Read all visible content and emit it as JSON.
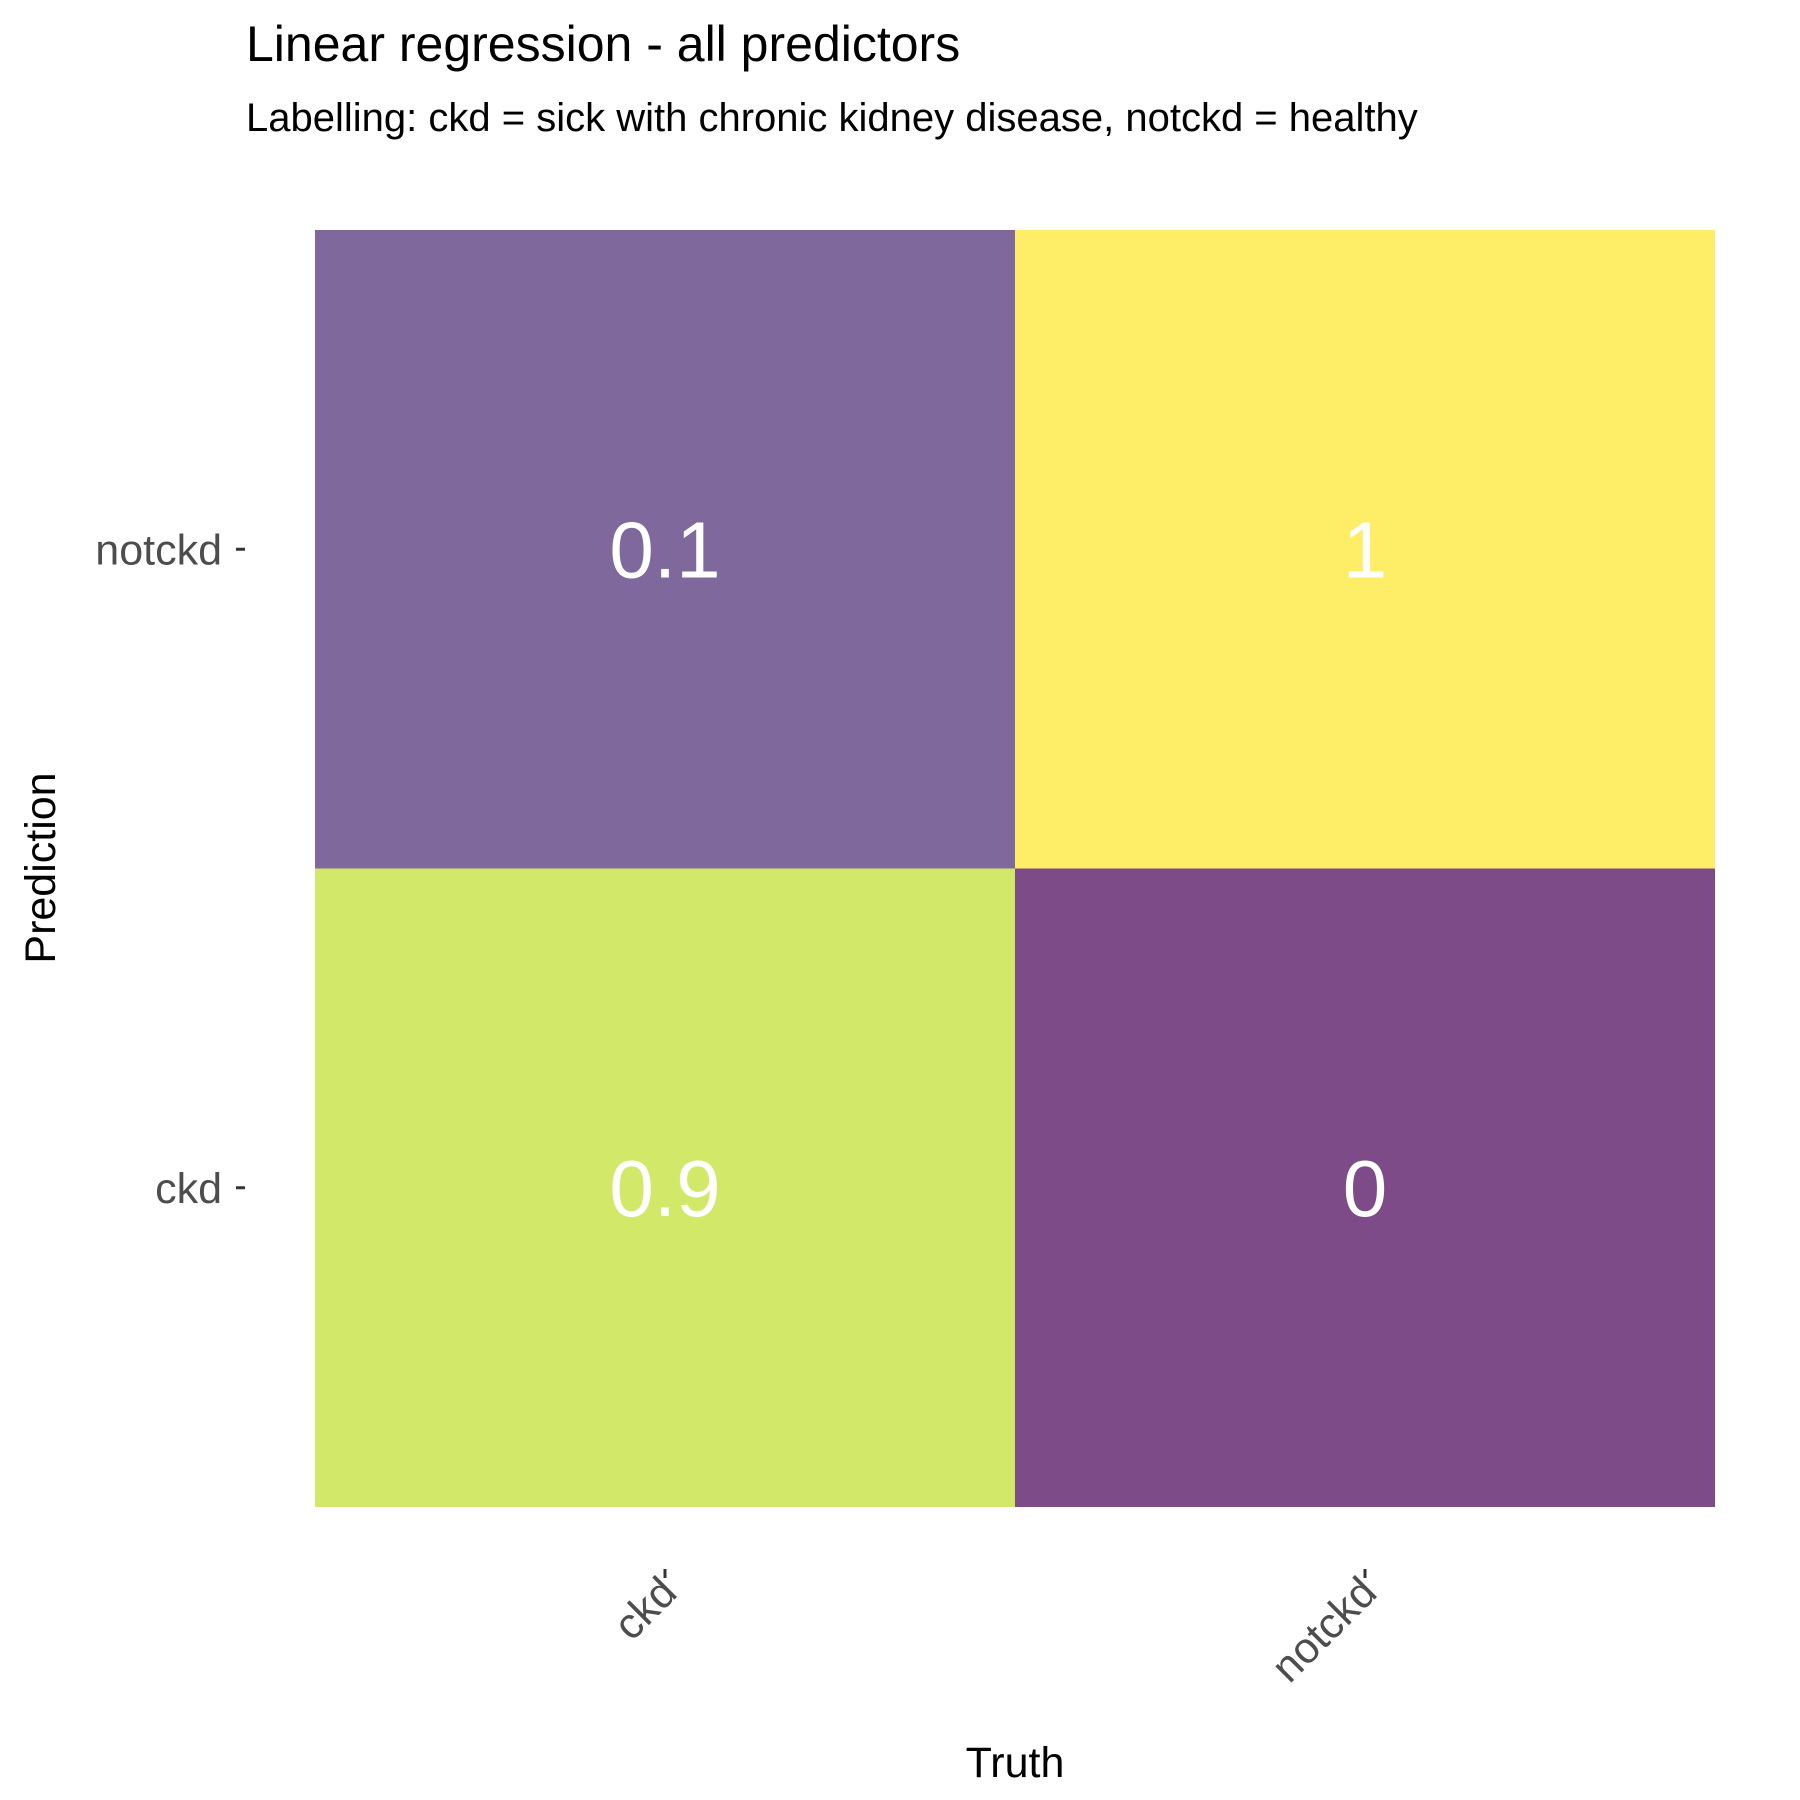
{
  "chart_data": {
    "type": "heatmap",
    "title": "Linear regression - all predictors",
    "subtitle": "Labelling: ckd = sick with chronic kidney disease, notckd = healthy",
    "xlabel": "Truth",
    "ylabel": "Prediction",
    "x_categories": [
      "ckd",
      "notckd"
    ],
    "y_categories": [
      "ckd",
      "notckd"
    ],
    "cells": [
      {
        "truth": "ckd",
        "prediction": "notckd",
        "value": 0.1,
        "label": "0.1",
        "color": "#7e689c"
      },
      {
        "truth": "notckd",
        "prediction": "notckd",
        "value": 1,
        "label": "1",
        "color": "#fded67"
      },
      {
        "truth": "ckd",
        "prediction": "ckd",
        "value": 0.9,
        "label": "0.9",
        "color": "#d1e869"
      },
      {
        "truth": "notckd",
        "prediction": "ckd",
        "value": 0,
        "label": "0",
        "color": "#7d4c88"
      }
    ],
    "grid": false,
    "legend": "none"
  }
}
